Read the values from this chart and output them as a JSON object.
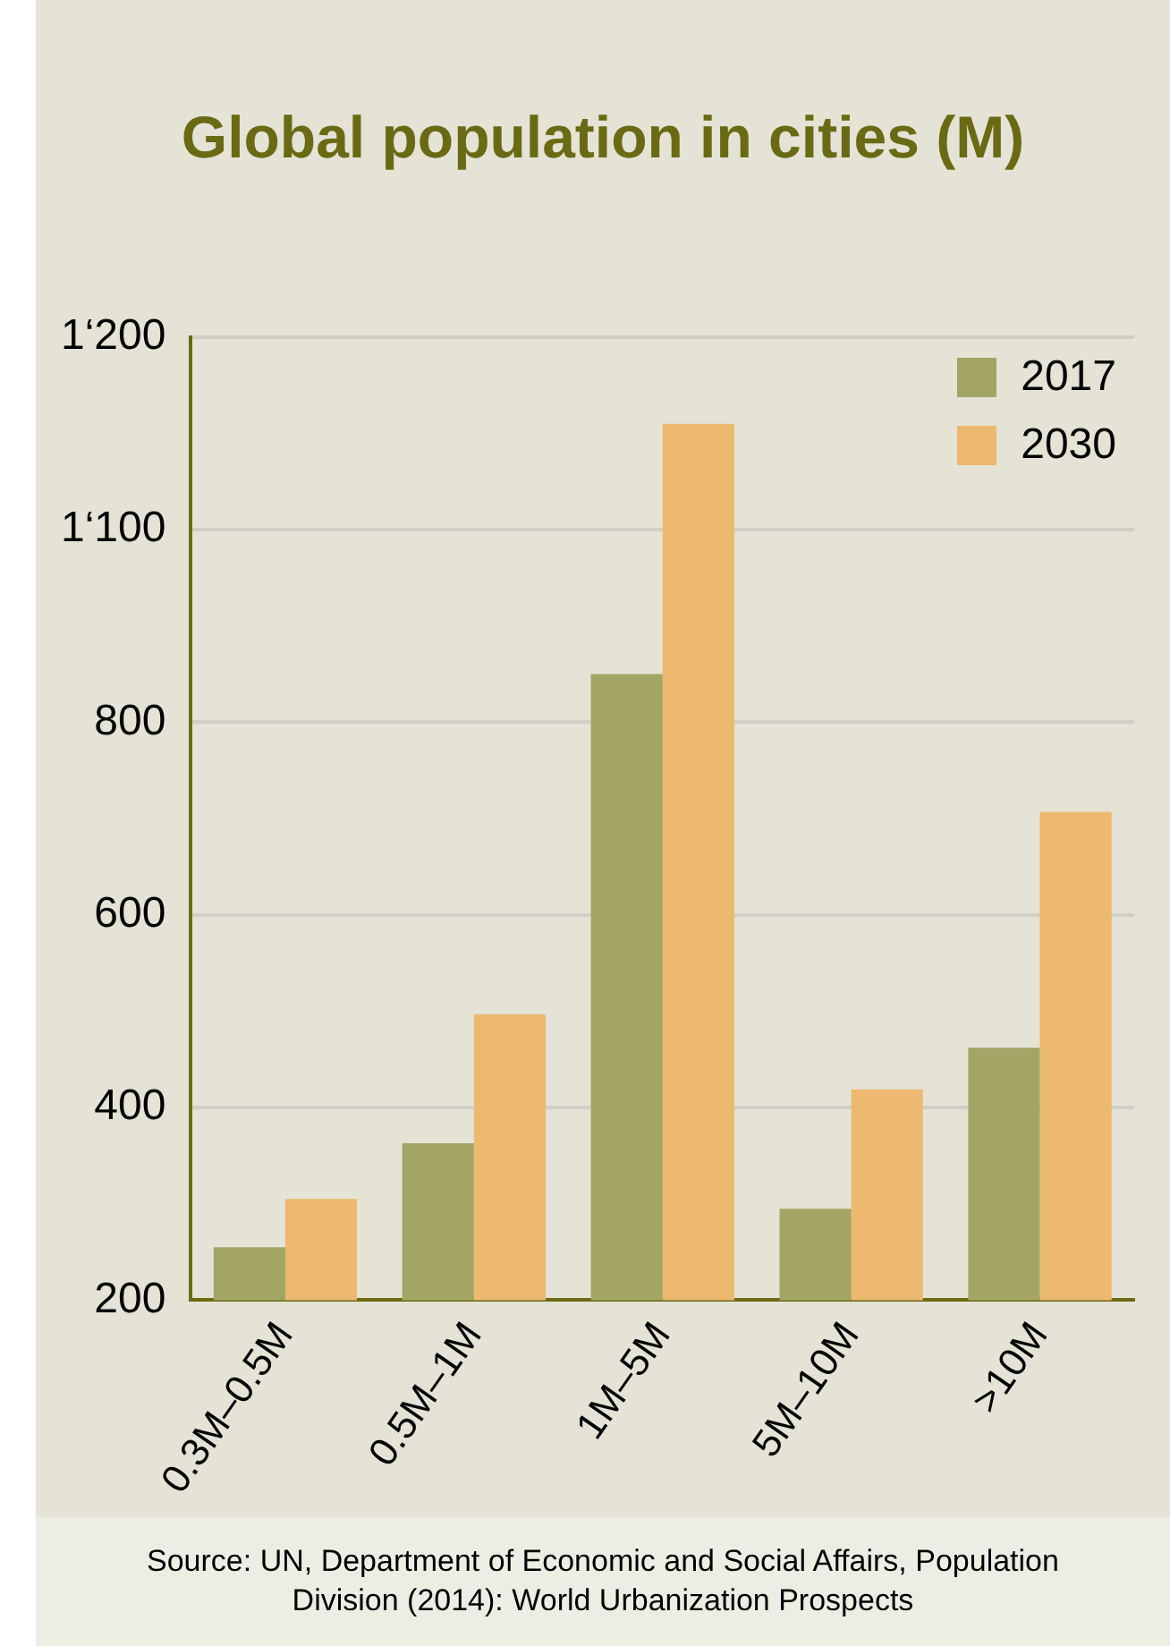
{
  "chart_data": {
    "type": "bar",
    "title": "Global population in cities (M)",
    "categories": [
      "0.3M–0.5M",
      "0.5M–1M",
      "1M–5M",
      "5M–10M",
      ">10M"
    ],
    "series": [
      {
        "name": "2017",
        "color": "#a3a565",
        "values": [
          255,
          363,
          850,
          295,
          462
        ]
      },
      {
        "name": "2030",
        "color": "#edb870",
        "values": [
          305,
          497,
          1110,
          419,
          707
        ]
      }
    ],
    "ylim": [
      200,
      1200
    ],
    "yticks": [
      200,
      400,
      600,
      800,
      {
        "value": 1000,
        "label": "1‘100"
      },
      {
        "value": 1200,
        "label": "1‘200"
      }
    ],
    "grid": "y",
    "legend": "top right",
    "annotations": [
      "Source: UN, Department of Economic and Social Affairs, Population Division (2014): World Urbanization Prospects"
    ]
  }
}
